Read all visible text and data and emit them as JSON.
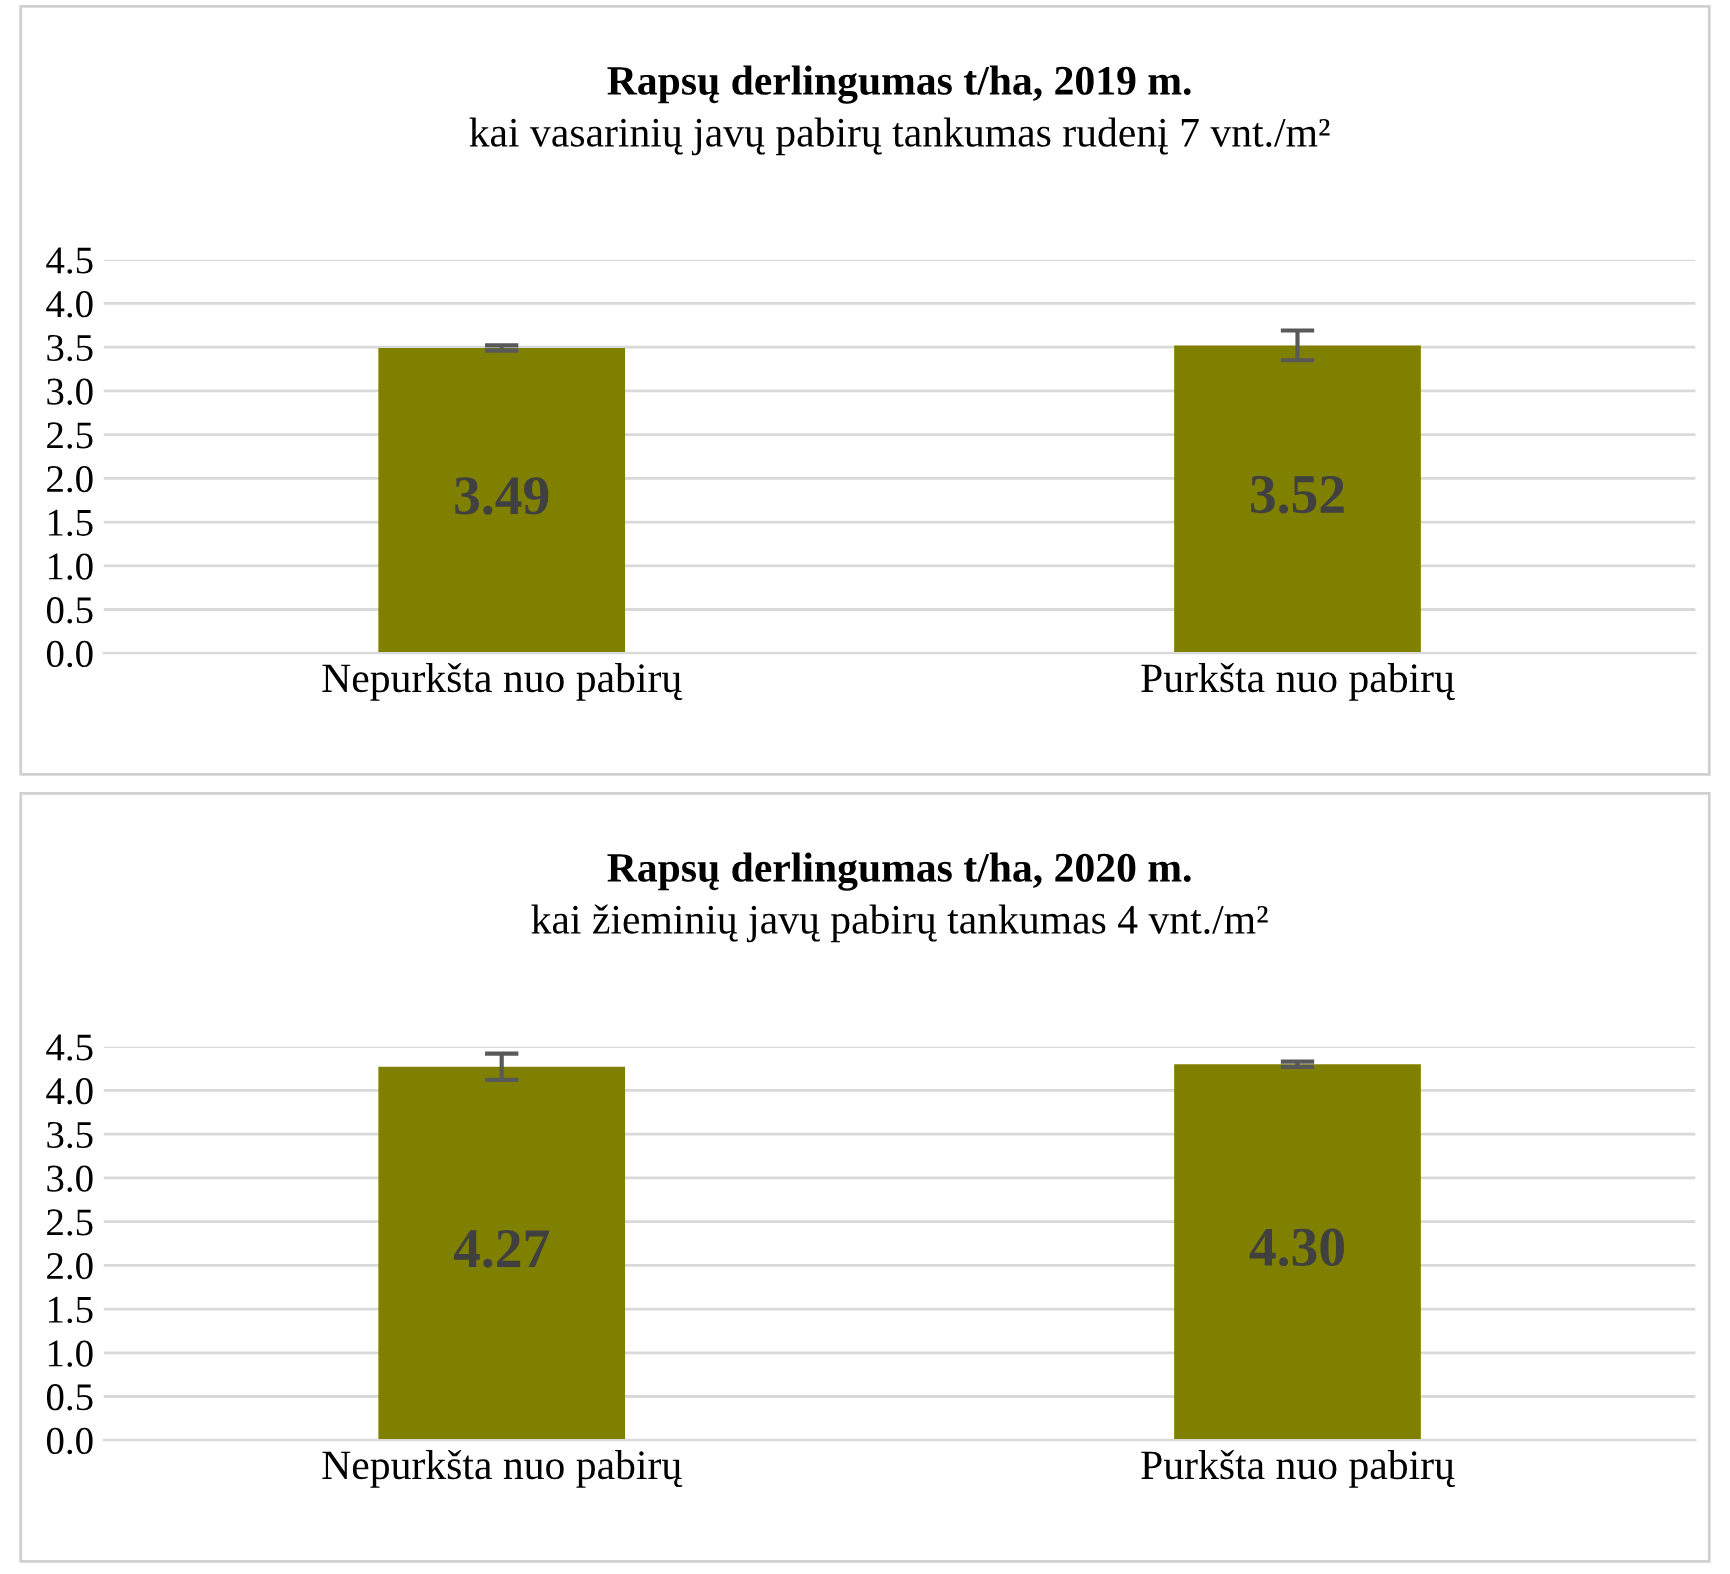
{
  "chart_data": [
    {
      "type": "bar",
      "title": "Rapsų derlingumas t/ha, 2019 m.",
      "subtitle": "kai vasarinių javų pabirų tankumas rudenį 7 vnt./m²",
      "categories": [
        "Nepurkšta nuo pabirų",
        "Purkšta nuo pabirų"
      ],
      "values": [
        3.49,
        3.52
      ],
      "errors": [
        0.03,
        0.17
      ],
      "value_labels": [
        "3.49",
        "3.52"
      ],
      "color": "#808000",
      "ylim": [
        0,
        4.5
      ],
      "yticks": [
        {
          "value": 0,
          "label": "0.0"
        },
        0.5,
        {
          "value": 1,
          "label": "1.0"
        },
        1.5,
        {
          "value": 2,
          "label": "2.0"
        },
        2.5,
        {
          "value": 3,
          "label": "3.0"
        },
        3.5,
        {
          "value": 4,
          "label": "4.0"
        },
        4.5
      ],
      "grid": "y"
    },
    {
      "type": "bar",
      "title": "Rapsų derlingumas t/ha, 2020 m.",
      "subtitle": "kai žieminių javų pabirų tankumas 4 vnt./m²",
      "categories": [
        "Nepurkšta nuo pabirų",
        "Purkšta nuo pabirų"
      ],
      "values": [
        4.27,
        4.3
      ],
      "errors": [
        0.15,
        0.03
      ],
      "value_labels": [
        "4.27",
        "4.30"
      ],
      "color": "#808000",
      "ylim": [
        0,
        4.5
      ],
      "yticks": [
        {
          "value": 0,
          "label": "0.0"
        },
        0.5,
        {
          "value": 1,
          "label": "1.0"
        },
        1.5,
        {
          "value": 2,
          "label": "2.0"
        },
        2.5,
        {
          "value": 3,
          "label": "3.0"
        },
        3.5,
        {
          "value": 4,
          "label": "4.0"
        },
        4.5
      ],
      "grid": "y"
    }
  ]
}
